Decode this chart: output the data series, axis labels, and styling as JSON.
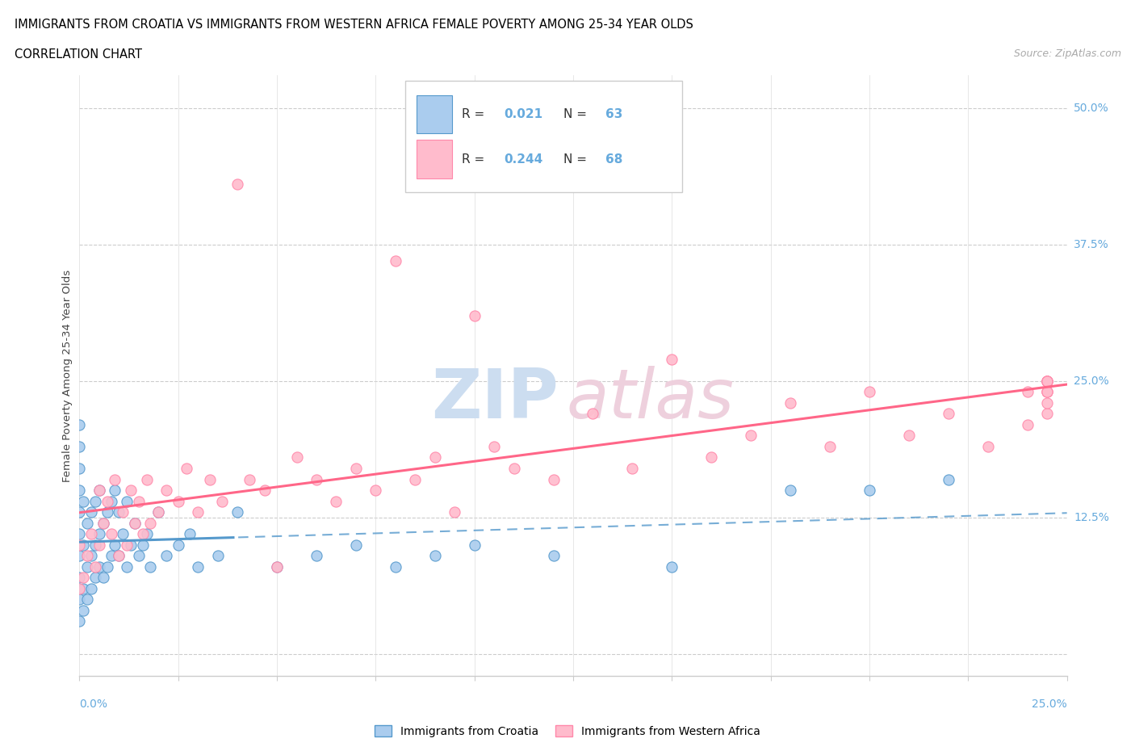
{
  "title": "IMMIGRANTS FROM CROATIA VS IMMIGRANTS FROM WESTERN AFRICA FEMALE POVERTY AMONG 25-34 YEAR OLDS",
  "subtitle": "CORRELATION CHART",
  "source": "Source: ZipAtlas.com",
  "ylabel": "Female Poverty Among 25-34 Year Olds",
  "xlim": [
    0.0,
    0.25
  ],
  "ylim": [
    -0.02,
    0.53
  ],
  "ytick_positions": [
    0.0,
    0.125,
    0.25,
    0.375,
    0.5
  ],
  "ytick_labels": [
    "",
    "12.5%",
    "25.0%",
    "37.5%",
    "50.0%"
  ],
  "color_croatia_fill": "#AACCEE",
  "color_croatia_edge": "#5599CC",
  "color_wa_fill": "#FFBBCC",
  "color_wa_edge": "#FF88AA",
  "color_blue_line": "#5599CC",
  "color_pink_line": "#FF6688",
  "color_axis_label": "#66AADD",
  "legend_R1": "0.021",
  "legend_N1": "63",
  "legend_R2": "0.244",
  "legend_N2": "68",
  "watermark_zip_color": "#CCDDF0",
  "watermark_atlas_color": "#EED0DD",
  "croatia_x": [
    0.0,
    0.0,
    0.0,
    0.0,
    0.0,
    0.0,
    0.0,
    0.0,
    0.0,
    0.0,
    0.001,
    0.001,
    0.001,
    0.001,
    0.002,
    0.002,
    0.002,
    0.003,
    0.003,
    0.003,
    0.004,
    0.004,
    0.004,
    0.005,
    0.005,
    0.005,
    0.006,
    0.006,
    0.007,
    0.007,
    0.008,
    0.008,
    0.009,
    0.009,
    0.01,
    0.01,
    0.011,
    0.012,
    0.012,
    0.013,
    0.014,
    0.015,
    0.016,
    0.017,
    0.018,
    0.02,
    0.022,
    0.025,
    0.028,
    0.03,
    0.035,
    0.04,
    0.05,
    0.06,
    0.07,
    0.08,
    0.09,
    0.1,
    0.12,
    0.15,
    0.18,
    0.2,
    0.22
  ],
  "croatia_y": [
    0.03,
    0.05,
    0.07,
    0.09,
    0.11,
    0.13,
    0.15,
    0.17,
    0.19,
    0.21,
    0.04,
    0.06,
    0.1,
    0.14,
    0.05,
    0.08,
    0.12,
    0.06,
    0.09,
    0.13,
    0.07,
    0.1,
    0.14,
    0.08,
    0.11,
    0.15,
    0.07,
    0.12,
    0.08,
    0.13,
    0.09,
    0.14,
    0.1,
    0.15,
    0.09,
    0.13,
    0.11,
    0.08,
    0.14,
    0.1,
    0.12,
    0.09,
    0.1,
    0.11,
    0.08,
    0.13,
    0.09,
    0.1,
    0.11,
    0.08,
    0.09,
    0.13,
    0.08,
    0.09,
    0.1,
    0.08,
    0.09,
    0.1,
    0.09,
    0.08,
    0.15,
    0.15,
    0.16
  ],
  "wa_x": [
    0.0,
    0.0,
    0.001,
    0.002,
    0.003,
    0.004,
    0.005,
    0.005,
    0.006,
    0.007,
    0.008,
    0.009,
    0.01,
    0.011,
    0.012,
    0.013,
    0.014,
    0.015,
    0.016,
    0.017,
    0.018,
    0.02,
    0.022,
    0.025,
    0.027,
    0.03,
    0.033,
    0.036,
    0.04,
    0.043,
    0.047,
    0.05,
    0.055,
    0.06,
    0.065,
    0.07,
    0.075,
    0.08,
    0.085,
    0.09,
    0.095,
    0.1,
    0.105,
    0.11,
    0.12,
    0.13,
    0.14,
    0.15,
    0.16,
    0.17,
    0.18,
    0.19,
    0.2,
    0.21,
    0.22,
    0.23,
    0.24,
    0.24,
    0.245,
    0.245,
    0.245,
    0.245,
    0.245,
    0.245,
    0.245,
    0.245,
    0.245,
    0.245
  ],
  "wa_y": [
    0.06,
    0.1,
    0.07,
    0.09,
    0.11,
    0.08,
    0.1,
    0.15,
    0.12,
    0.14,
    0.11,
    0.16,
    0.09,
    0.13,
    0.1,
    0.15,
    0.12,
    0.14,
    0.11,
    0.16,
    0.12,
    0.13,
    0.15,
    0.14,
    0.17,
    0.13,
    0.16,
    0.14,
    0.43,
    0.16,
    0.15,
    0.08,
    0.18,
    0.16,
    0.14,
    0.17,
    0.15,
    0.36,
    0.16,
    0.18,
    0.13,
    0.31,
    0.19,
    0.17,
    0.16,
    0.22,
    0.17,
    0.27,
    0.18,
    0.2,
    0.23,
    0.19,
    0.24,
    0.2,
    0.22,
    0.19,
    0.21,
    0.24,
    0.22,
    0.24,
    0.25,
    0.23,
    0.25,
    0.24,
    0.25,
    0.25,
    0.25,
    0.24
  ]
}
